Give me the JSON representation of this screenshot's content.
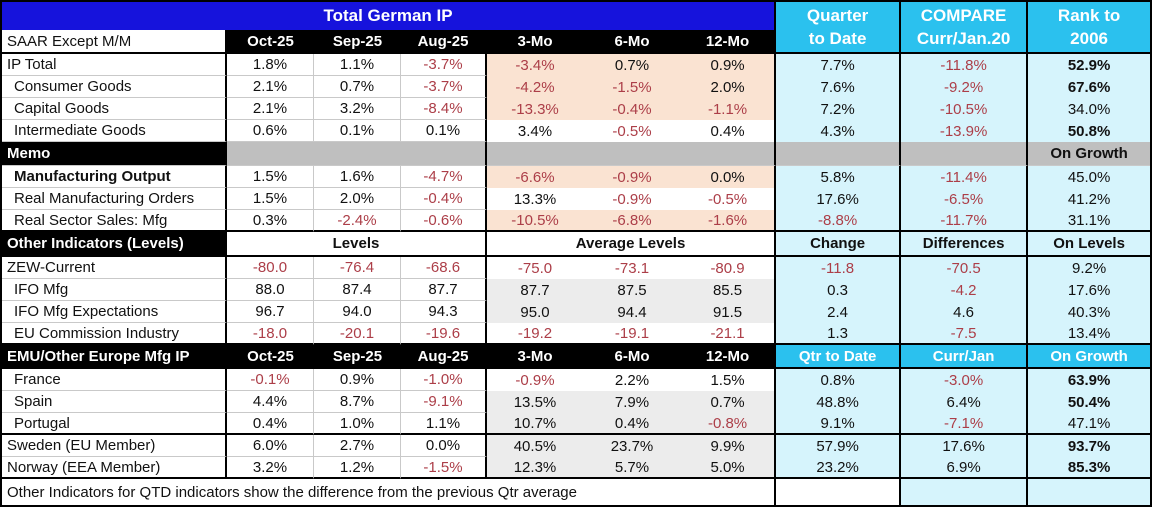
{
  "title": "Total German IP",
  "corner_label": "SAAR Except M/M",
  "month_columns": [
    "Oct-25",
    "Sep-25",
    "Aug-25",
    "3-Mo",
    "6-Mo",
    "12-Mo"
  ],
  "right_headers": {
    "qtd": [
      "Quarter",
      "to Date"
    ],
    "compare": [
      "COMPARE",
      "Curr/Jan.20"
    ],
    "rank": [
      "Rank to",
      "2006"
    ]
  },
  "memo": {
    "label": "Memo",
    "rank_note": "On Growth"
  },
  "other": {
    "label": "Other Indicators (Levels)",
    "levels": "Levels",
    "avg": "Average Levels",
    "change": "Change",
    "differences": "Differences",
    "on_levels": "On Levels"
  },
  "emu": {
    "label": "EMU/Other Europe Mfg IP",
    "cols": [
      "Oct-25",
      "Sep-25",
      "Aug-25",
      "3-Mo",
      "6-Mo",
      "12-Mo"
    ],
    "qtd": "Qtr to Date",
    "curr_jan": "Curr/Jan",
    "on_growth": "On Growth"
  },
  "rows": {
    "german": [
      {
        "label": "IP Total",
        "ind": false,
        "b": false,
        "vals": [
          "1.8%",
          "1.1%",
          "-3.7%",
          "-3.4%",
          "0.7%",
          "0.9%"
        ],
        "mid": "p",
        "qtd": "7.7%",
        "cmp": "-11.8%",
        "rank": "52.9%",
        "rb": true,
        "sep": false
      },
      {
        "label": "Consumer Goods",
        "ind": true,
        "b": false,
        "vals": [
          "2.1%",
          "0.7%",
          "-3.7%",
          "-4.2%",
          "-1.5%",
          "2.0%"
        ],
        "mid": "p",
        "qtd": "7.6%",
        "cmp": "-9.2%",
        "rank": "67.6%",
        "rb": true,
        "sep": false
      },
      {
        "label": "Capital Goods",
        "ind": true,
        "b": false,
        "vals": [
          "2.1%",
          "3.2%",
          "-8.4%",
          "-13.3%",
          "-0.4%",
          "-1.1%"
        ],
        "mid": "p",
        "qtd": "7.2%",
        "cmp": "-10.5%",
        "rank": "34.0%",
        "rb": false,
        "sep": false
      },
      {
        "label": "Intermediate Goods",
        "ind": true,
        "b": false,
        "vals": [
          "0.6%",
          "0.1%",
          "0.1%",
          "3.4%",
          "-0.5%",
          "0.4%"
        ],
        "mid": "w",
        "qtd": "4.3%",
        "cmp": "-13.9%",
        "rank": "50.8%",
        "rb": true,
        "sep": false
      }
    ],
    "memo_rows": [
      {
        "label": "Manufacturing Output",
        "ind": true,
        "b": true,
        "vals": [
          "1.5%",
          "1.6%",
          "-4.7%",
          "-6.6%",
          "-0.9%",
          "0.0%"
        ],
        "mid": "p",
        "qtd": "5.8%",
        "cmp": "-11.4%",
        "rank": "45.0%",
        "rb": false,
        "sep": false
      },
      {
        "label": "Real Manufacturing Orders",
        "ind": true,
        "b": false,
        "vals": [
          "1.5%",
          "2.0%",
          "-0.4%",
          "13.3%",
          "-0.9%",
          "-0.5%"
        ],
        "mid": "w",
        "qtd": "17.6%",
        "cmp": "-6.5%",
        "rank": "41.2%",
        "rb": false,
        "sep": false
      },
      {
        "label": "Real Sector Sales: Mfg",
        "ind": true,
        "b": false,
        "vals": [
          "0.3%",
          "-2.4%",
          "-0.6%",
          "-10.5%",
          "-6.8%",
          "-1.6%"
        ],
        "mid": "p",
        "qtd": "-8.8%",
        "cmp": "-11.7%",
        "rank": "31.1%",
        "rb": false,
        "sep": true
      }
    ],
    "other_rows": [
      {
        "label": "ZEW-Current",
        "ind": false,
        "b": false,
        "vals": [
          "-80.0",
          "-76.4",
          "-68.6",
          "-75.0",
          "-73.1",
          "-80.9"
        ],
        "mid": "w",
        "qtd": "-11.8",
        "cmp": "-70.5",
        "rank": "9.2%",
        "rb": false,
        "sep": false
      },
      {
        "label": "IFO Mfg",
        "ind": true,
        "b": false,
        "vals": [
          "88.0",
          "87.4",
          "87.7",
          "87.7",
          "87.5",
          "85.5"
        ],
        "mid": "g",
        "qtd": "0.3",
        "cmp": "-4.2",
        "rank": "17.6%",
        "rb": false,
        "sep": false
      },
      {
        "label": "IFO Mfg Expectations",
        "ind": true,
        "b": false,
        "vals": [
          "96.7",
          "94.0",
          "94.3",
          "95.0",
          "94.4",
          "91.5"
        ],
        "mid": "g",
        "qtd": "2.4",
        "cmp": "4.6",
        "rank": "40.3%",
        "rb": false,
        "sep": false
      },
      {
        "label": "EU Commission Industry",
        "ind": true,
        "b": false,
        "vals": [
          "-18.0",
          "-20.1",
          "-19.6",
          "-19.2",
          "-19.1",
          "-21.1"
        ],
        "mid": "w",
        "qtd": "1.3",
        "cmp": "-7.5",
        "rank": "13.4%",
        "rb": false,
        "sep": true
      }
    ],
    "emu_rows": [
      {
        "label": "France",
        "ind": true,
        "b": false,
        "vals": [
          "-0.1%",
          "0.9%",
          "-1.0%",
          "-0.9%",
          "2.2%",
          "1.5%"
        ],
        "mid": "w",
        "qtd": "0.8%",
        "cmp": "-3.0%",
        "rank": "63.9%",
        "rb": true,
        "sep": false
      },
      {
        "label": "Spain",
        "ind": true,
        "b": false,
        "vals": [
          "4.4%",
          "8.7%",
          "-9.1%",
          "13.5%",
          "7.9%",
          "0.7%"
        ],
        "mid": "g",
        "qtd": "48.8%",
        "cmp": "6.4%",
        "rank": "50.4%",
        "rb": true,
        "sep": false
      },
      {
        "label": "Portugal",
        "ind": true,
        "b": false,
        "vals": [
          "0.4%",
          "1.0%",
          "1.1%",
          "10.7%",
          "0.4%",
          "-0.8%"
        ],
        "mid": "g",
        "qtd": "9.1%",
        "cmp": "-7.1%",
        "rank": "47.1%",
        "rb": false,
        "sep": true
      },
      {
        "label": "Sweden (EU Member)",
        "ind": false,
        "b": false,
        "vals": [
          "6.0%",
          "2.7%",
          "0.0%",
          "40.5%",
          "23.7%",
          "9.9%"
        ],
        "mid": "g",
        "qtd": "57.9%",
        "cmp": "17.6%",
        "rank": "93.7%",
        "rb": true,
        "sep": false
      },
      {
        "label": "Norway (EEA Member)",
        "ind": false,
        "b": false,
        "vals": [
          "3.2%",
          "1.2%",
          "-1.5%",
          "12.3%",
          "5.7%",
          "5.0%"
        ],
        "mid": "g",
        "qtd": "23.2%",
        "cmp": "6.9%",
        "rank": "85.3%",
        "rb": true,
        "sep": true
      }
    ]
  },
  "footer": "Other Indicators for QTD indicators show the difference from the previous Qtr average",
  "colors": {
    "title_blue": "#1613DC",
    "header_cyan": "#2BC1EE",
    "light_cyan": "#D6F4FC",
    "peach": "#FAE3D2",
    "light_gray": "#ECECEC",
    "band_gray": "#BFBFBF",
    "negative_red": "#AC3E48"
  }
}
